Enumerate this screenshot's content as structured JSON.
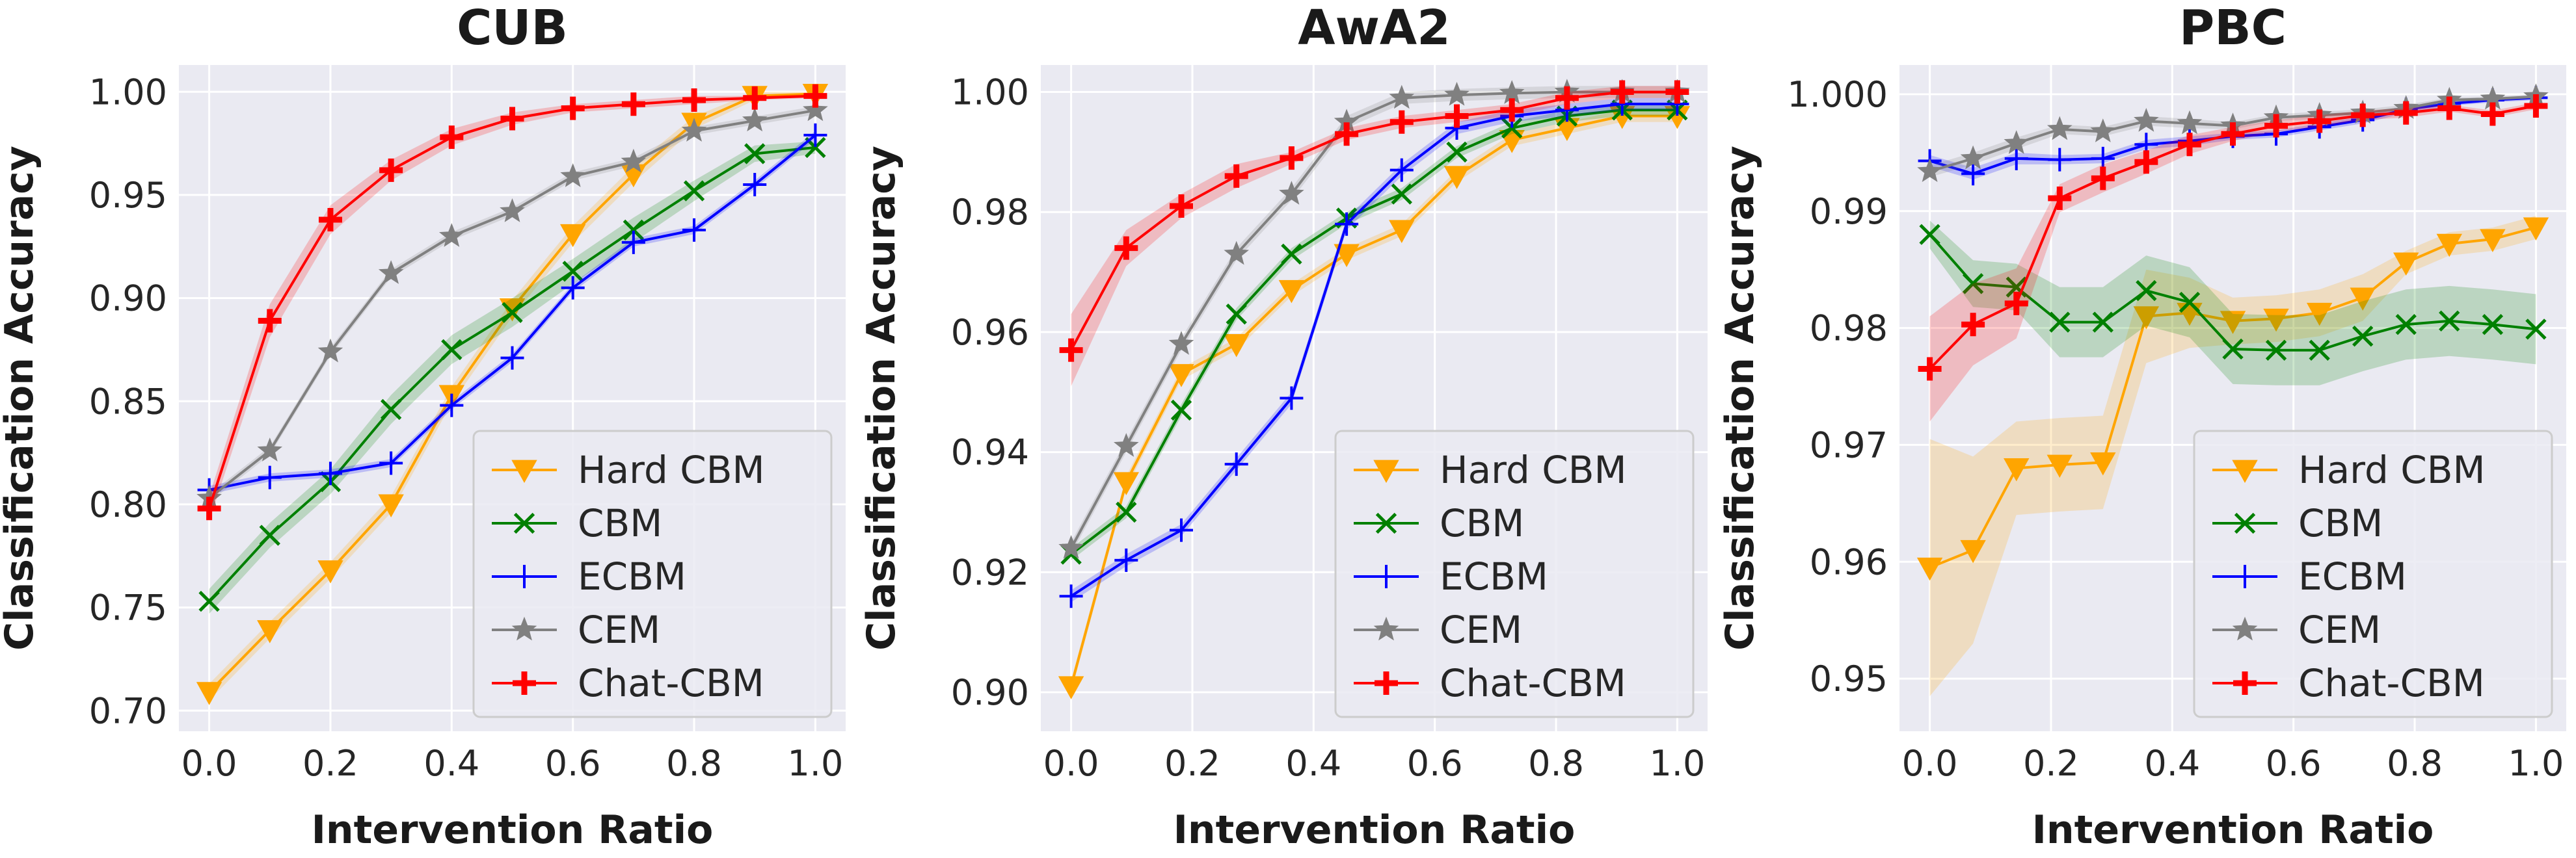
{
  "chart_data": [
    {
      "type": "line",
      "title": "CUB",
      "xlabel": "Intervention Ratio",
      "ylabel": "Classification Accuracy",
      "xlim": [
        -0.05,
        1.05
      ],
      "ylim": [
        0.69,
        1.013
      ],
      "xticks": [
        0.0,
        0.2,
        0.4,
        0.6,
        0.8,
        1.0
      ],
      "xtick_labels": [
        "0.0",
        "0.2",
        "0.4",
        "0.6",
        "0.8",
        "1.0"
      ],
      "yticks": [
        0.7,
        0.75,
        0.8,
        0.85,
        0.9,
        0.95,
        1.0
      ],
      "ytick_labels": [
        "0.70",
        "0.75",
        "0.80",
        "0.85",
        "0.90",
        "0.95",
        "1.00"
      ],
      "grid": true,
      "legend": "bottom-right",
      "series": [
        {
          "name": "Hard CBM",
          "color": "#ffa500",
          "marker": "triangle-down",
          "x": [
            0,
            0.1,
            0.2,
            0.3,
            0.4,
            0.5,
            0.6,
            0.7,
            0.8,
            0.9,
            1.0
          ],
          "values": [
            0.709,
            0.739,
            0.768,
            0.8,
            0.853,
            0.895,
            0.931,
            0.96,
            0.985,
            0.998,
            0.999
          ],
          "band": [
            0.004,
            0.004,
            0.004,
            0.004,
            0.004,
            0.004,
            0.004,
            0.004,
            0.003,
            0.002,
            0.001
          ]
        },
        {
          "name": "CBM",
          "color": "#008000",
          "marker": "x",
          "x": [
            0,
            0.1,
            0.2,
            0.3,
            0.4,
            0.5,
            0.6,
            0.7,
            0.8,
            0.9,
            1.0
          ],
          "values": [
            0.753,
            0.785,
            0.811,
            0.846,
            0.875,
            0.893,
            0.913,
            0.933,
            0.952,
            0.97,
            0.973
          ],
          "band": [
            0.006,
            0.006,
            0.006,
            0.007,
            0.007,
            0.007,
            0.006,
            0.006,
            0.005,
            0.004,
            0.003
          ]
        },
        {
          "name": "ECBM",
          "color": "#0000ff",
          "marker": "plus",
          "x": [
            0,
            0.1,
            0.2,
            0.3,
            0.4,
            0.5,
            0.6,
            0.7,
            0.8,
            0.9,
            1.0
          ],
          "values": [
            0.807,
            0.813,
            0.815,
            0.82,
            0.848,
            0.871,
            0.905,
            0.927,
            0.933,
            0.955,
            0.979
          ],
          "band": [
            0.002,
            0.002,
            0.002,
            0.002,
            0.002,
            0.002,
            0.002,
            0.002,
            0.002,
            0.002,
            0.002
          ]
        },
        {
          "name": "CEM",
          "color": "#808080",
          "marker": "star",
          "x": [
            0,
            0.1,
            0.2,
            0.3,
            0.4,
            0.5,
            0.6,
            0.7,
            0.8,
            0.9,
            1.0
          ],
          "values": [
            0.803,
            0.826,
            0.874,
            0.912,
            0.93,
            0.942,
            0.959,
            0.966,
            0.981,
            0.986,
            0.991
          ],
          "band": [
            0.002,
            0.002,
            0.002,
            0.002,
            0.002,
            0.002,
            0.002,
            0.002,
            0.002,
            0.002,
            0.002
          ]
        },
        {
          "name": "Chat-CBM",
          "color": "#ff0000",
          "marker": "plus-bold",
          "x": [
            0,
            0.1,
            0.2,
            0.3,
            0.4,
            0.5,
            0.6,
            0.7,
            0.8,
            0.9,
            1.0
          ],
          "values": [
            0.798,
            0.889,
            0.938,
            0.962,
            0.978,
            0.987,
            0.992,
            0.994,
            0.996,
            0.997,
            0.998
          ],
          "band": [
            0.006,
            0.008,
            0.007,
            0.005,
            0.004,
            0.003,
            0.002,
            0.002,
            0.002,
            0.001,
            0.001
          ]
        }
      ]
    },
    {
      "type": "line",
      "title": "AwA2",
      "xlabel": "Intervention Ratio",
      "ylabel": "Classification Accuracy",
      "xlim": [
        -0.05,
        1.05
      ],
      "ylim": [
        0.8935,
        1.0045
      ],
      "xticks": [
        0.0,
        0.2,
        0.4,
        0.6,
        0.8,
        1.0
      ],
      "xtick_labels": [
        "0.0",
        "0.2",
        "0.4",
        "0.6",
        "0.8",
        "1.0"
      ],
      "yticks": [
        0.9,
        0.92,
        0.94,
        0.96,
        0.98,
        1.0
      ],
      "ytick_labels": [
        "0.90",
        "0.92",
        "0.94",
        "0.96",
        "0.98",
        "1.00"
      ],
      "grid": true,
      "legend": "bottom-right",
      "series": [
        {
          "name": "Hard CBM",
          "color": "#ffa500",
          "marker": "triangle-down",
          "x": [
            0,
            0.0909,
            0.1818,
            0.2727,
            0.3636,
            0.4545,
            0.5454,
            0.6363,
            0.7272,
            0.8181,
            0.9091,
            1.0
          ],
          "values": [
            0.901,
            0.935,
            0.953,
            0.958,
            0.967,
            0.973,
            0.977,
            0.986,
            0.992,
            0.994,
            0.996,
            0.996
          ],
          "band": [
            0.001,
            0.001,
            0.001,
            0.001,
            0.001,
            0.001,
            0.001,
            0.001,
            0.001,
            0.001,
            0.001,
            0.001
          ]
        },
        {
          "name": "CBM",
          "color": "#008000",
          "marker": "x",
          "x": [
            0,
            0.0909,
            0.1818,
            0.2727,
            0.3636,
            0.4545,
            0.5454,
            0.6363,
            0.7272,
            0.8181,
            0.9091,
            1.0
          ],
          "values": [
            0.923,
            0.93,
            0.947,
            0.963,
            0.973,
            0.979,
            0.983,
            0.99,
            0.994,
            0.996,
            0.997,
            0.997
          ],
          "band": [
            0.001,
            0.001,
            0.001,
            0.001,
            0.001,
            0.001,
            0.001,
            0.001,
            0.001,
            0.001,
            0.001,
            0.001
          ]
        },
        {
          "name": "ECBM",
          "color": "#0000ff",
          "marker": "plus",
          "x": [
            0,
            0.0909,
            0.1818,
            0.2727,
            0.3636,
            0.4545,
            0.5454,
            0.6363,
            0.7272,
            0.8181,
            0.9091,
            1.0
          ],
          "values": [
            0.916,
            0.922,
            0.927,
            0.938,
            0.949,
            0.978,
            0.987,
            0.994,
            0.996,
            0.997,
            0.998,
            0.998
          ],
          "band": [
            0.001,
            0.001,
            0.001,
            0.001,
            0.001,
            0.001,
            0.001,
            0.001,
            0.001,
            0.001,
            0.001,
            0.001
          ]
        },
        {
          "name": "CEM",
          "color": "#808080",
          "marker": "star",
          "x": [
            0,
            0.0909,
            0.1818,
            0.2727,
            0.3636,
            0.4545,
            0.5454,
            0.6363,
            0.7272,
            0.8181,
            0.9091,
            1.0
          ],
          "values": [
            0.924,
            0.941,
            0.958,
            0.973,
            0.983,
            0.995,
            0.999,
            0.9995,
            0.9998,
            1.0,
            1.0,
            1.0
          ],
          "band": [
            0.001,
            0.001,
            0.001,
            0.001,
            0.001,
            0.001,
            0.001,
            0.001,
            0.001,
            0.001,
            0.001,
            0.001
          ]
        },
        {
          "name": "Chat-CBM",
          "color": "#ff0000",
          "marker": "plus-bold",
          "x": [
            0,
            0.0909,
            0.1818,
            0.2727,
            0.3636,
            0.4545,
            0.5454,
            0.6363,
            0.7272,
            0.8181,
            0.9091,
            1.0
          ],
          "values": [
            0.957,
            0.974,
            0.981,
            0.986,
            0.989,
            0.993,
            0.995,
            0.996,
            0.997,
            0.999,
            1.0,
            1.0
          ],
          "band": [
            0.006,
            0.003,
            0.002,
            0.002,
            0.001,
            0.001,
            0.001,
            0.001,
            0.001,
            0.001,
            0.001,
            0.001
          ]
        }
      ]
    },
    {
      "type": "line",
      "title": "PBC",
      "xlabel": "Intervention Ratio",
      "ylabel": "Classification Accuracy",
      "xlim": [
        -0.05,
        1.05
      ],
      "ylim": [
        0.9455,
        1.0025
      ],
      "xticks": [
        0.0,
        0.2,
        0.4,
        0.6,
        0.8,
        1.0
      ],
      "xtick_labels": [
        "0.0",
        "0.2",
        "0.4",
        "0.6",
        "0.8",
        "1.0"
      ],
      "yticks": [
        0.95,
        0.96,
        0.97,
        0.98,
        0.99,
        1.0
      ],
      "ytick_labels": [
        "0.95",
        "0.96",
        "0.97",
        "0.98",
        "0.99",
        "1.000"
      ],
      "grid": true,
      "legend": "bottom-right",
      "series": [
        {
          "name": "Hard CBM",
          "color": "#ffa500",
          "marker": "triangle-down",
          "x": [
            0,
            0.0714,
            0.1429,
            0.2143,
            0.2857,
            0.3571,
            0.4286,
            0.5,
            0.5714,
            0.6429,
            0.7143,
            0.7857,
            0.8571,
            0.9286,
            1.0
          ],
          "values": [
            0.9595,
            0.961,
            0.968,
            0.9683,
            0.9685,
            0.981,
            0.9813,
            0.9806,
            0.9808,
            0.9813,
            0.9826,
            0.9856,
            0.9872,
            0.9876,
            0.9886
          ],
          "band": [
            0.011,
            0.008,
            0.004,
            0.004,
            0.004,
            0.004,
            0.003,
            0.002,
            0.002,
            0.002,
            0.002,
            0.001,
            0.001,
            0.001,
            0.001
          ]
        },
        {
          "name": "CBM",
          "color": "#008000",
          "marker": "x",
          "x": [
            0,
            0.0714,
            0.1429,
            0.2143,
            0.2857,
            0.3571,
            0.4286,
            0.5,
            0.5714,
            0.6429,
            0.7143,
            0.7857,
            0.8571,
            0.9286,
            1.0
          ],
          "values": [
            0.988,
            0.9838,
            0.9835,
            0.9805,
            0.9805,
            0.9832,
            0.9822,
            0.9782,
            0.9781,
            0.9781,
            0.9793,
            0.9803,
            0.9806,
            0.9803,
            0.9799
          ],
          "band": [
            0.0012,
            0.002,
            0.002,
            0.003,
            0.003,
            0.003,
            0.003,
            0.003,
            0.003,
            0.003,
            0.003,
            0.003,
            0.003,
            0.003,
            0.003
          ]
        },
        {
          "name": "ECBM",
          "color": "#0000ff",
          "marker": "plus",
          "x": [
            0,
            0.0714,
            0.1429,
            0.2143,
            0.2857,
            0.3571,
            0.4286,
            0.5,
            0.5714,
            0.6429,
            0.7143,
            0.7857,
            0.8571,
            0.9286,
            1.0
          ],
          "values": [
            0.9943,
            0.9932,
            0.9945,
            0.9944,
            0.9945,
            0.9957,
            0.996,
            0.9964,
            0.9966,
            0.9972,
            0.9978,
            0.9987,
            0.9992,
            0.9995,
            0.9997
          ],
          "band": [
            0.0005,
            0.0005,
            0.0005,
            0.0004,
            0.0004,
            0.0004,
            0.0004,
            0.0003,
            0.0003,
            0.0003,
            0.0003,
            0.0003,
            0.0002,
            0.0002,
            0.0002
          ]
        },
        {
          "name": "CEM",
          "color": "#808080",
          "marker": "star",
          "x": [
            0,
            0.0714,
            0.1429,
            0.2143,
            0.2857,
            0.3571,
            0.4286,
            0.5,
            0.5714,
            0.6429,
            0.7143,
            0.7857,
            0.8571,
            0.9286,
            1.0
          ],
          "values": [
            0.9934,
            0.9945,
            0.9958,
            0.997,
            0.9968,
            0.9977,
            0.9975,
            0.9973,
            0.998,
            0.9982,
            0.9984,
            0.9988,
            0.9995,
            0.9996,
            0.9998
          ],
          "band": [
            0.0005,
            0.0005,
            0.0005,
            0.0004,
            0.0004,
            0.0004,
            0.0004,
            0.0003,
            0.0003,
            0.0003,
            0.0003,
            0.0003,
            0.0002,
            0.0002,
            0.0002
          ]
        },
        {
          "name": "Chat-CBM",
          "color": "#ff0000",
          "marker": "plus-bold",
          "x": [
            0,
            0.0714,
            0.1429,
            0.2143,
            0.2857,
            0.3571,
            0.4286,
            0.5,
            0.5714,
            0.6429,
            0.7143,
            0.7857,
            0.8571,
            0.9286,
            1.0
          ],
          "values": [
            0.9765,
            0.9803,
            0.9821,
            0.9911,
            0.9928,
            0.9942,
            0.9957,
            0.9966,
            0.9973,
            0.9977,
            0.9982,
            0.9984,
            0.9988,
            0.9983,
            0.999
          ],
          "band": [
            0.0045,
            0.0035,
            0.003,
            0.0012,
            0.0012,
            0.001,
            0.0008,
            0.0006,
            0.0005,
            0.0005,
            0.0004,
            0.0004,
            0.0003,
            0.0003,
            0.0003
          ]
        }
      ]
    }
  ]
}
